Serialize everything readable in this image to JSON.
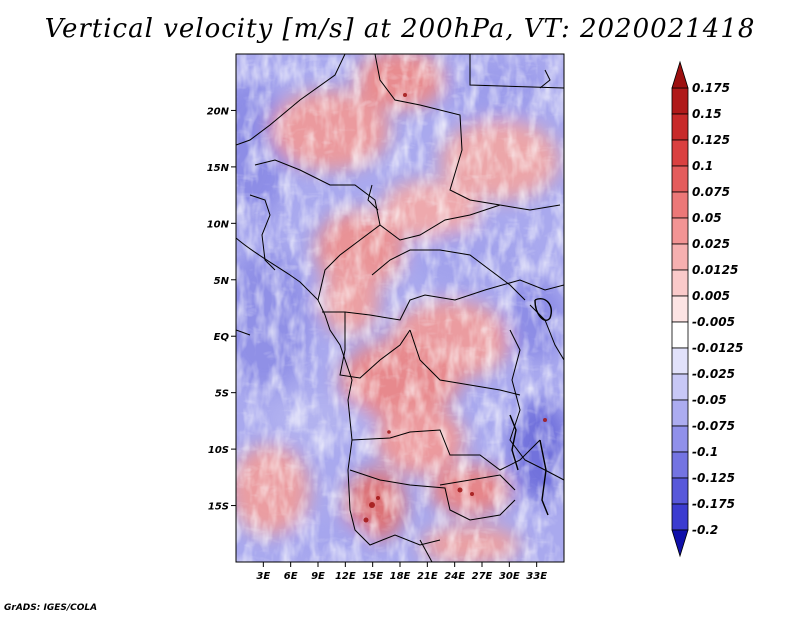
{
  "title": "Vertical velocity [m/s] at 200hPa, VT: 2020021418",
  "footer": "GrADS: IGES/COLA",
  "map": {
    "variable": "Vertical velocity",
    "units": "m/s",
    "level": "200hPa",
    "valid_time": "2020021418",
    "lon_range": [
      0,
      36
    ],
    "lat_range": [
      -20,
      25
    ],
    "lon_ticks": [
      {
        "value": 3,
        "label": "3E"
      },
      {
        "value": 6,
        "label": "6E"
      },
      {
        "value": 9,
        "label": "9E"
      },
      {
        "value": 12,
        "label": "12E"
      },
      {
        "value": 15,
        "label": "15E"
      },
      {
        "value": 18,
        "label": "18E"
      },
      {
        "value": 21,
        "label": "21E"
      },
      {
        "value": 24,
        "label": "24E"
      },
      {
        "value": 27,
        "label": "27E"
      },
      {
        "value": 30,
        "label": "30E"
      },
      {
        "value": 33,
        "label": "33E"
      }
    ],
    "lat_ticks": [
      {
        "value": 20,
        "label": "20N"
      },
      {
        "value": 15,
        "label": "15N"
      },
      {
        "value": 10,
        "label": "10N"
      },
      {
        "value": 5,
        "label": "5N"
      },
      {
        "value": 0,
        "label": "EQ"
      },
      {
        "value": -5,
        "label": "5S"
      },
      {
        "value": -10,
        "label": "10S"
      },
      {
        "value": -15,
        "label": "15S"
      }
    ]
  },
  "colorbar": {
    "levels": [
      {
        "value": 0.175,
        "label": "0.175",
        "color": "#b01a1a"
      },
      {
        "value": 0.15,
        "label": "0.15",
        "color": "#c82a2a"
      },
      {
        "value": 0.125,
        "label": "0.125",
        "color": "#da4040"
      },
      {
        "value": 0.1,
        "label": "0.1",
        "color": "#e45c5c"
      },
      {
        "value": 0.075,
        "label": "0.075",
        "color": "#ec7878"
      },
      {
        "value": 0.05,
        "label": "0.05",
        "color": "#f29494"
      },
      {
        "value": 0.025,
        "label": "0.025",
        "color": "#f6b0b0"
      },
      {
        "value": 0.0125,
        "label": "0.0125",
        "color": "#facaca"
      },
      {
        "value": 0.005,
        "label": "0.005",
        "color": "#fde4e4"
      },
      {
        "value": -0.005,
        "label": "-0.005",
        "color": "#ffffff"
      },
      {
        "value": -0.0125,
        "label": "-0.0125",
        "color": "#e2e2fb"
      },
      {
        "value": -0.025,
        "label": "-0.025",
        "color": "#c8c8f6"
      },
      {
        "value": -0.05,
        "label": "-0.05",
        "color": "#acacf0"
      },
      {
        "value": -0.075,
        "label": "-0.075",
        "color": "#9090ea"
      },
      {
        "value": -0.1,
        "label": "-0.1",
        "color": "#7474e2"
      },
      {
        "value": -0.125,
        "label": "-0.125",
        "color": "#5858da"
      },
      {
        "value": -0.175,
        "label": "-0.175",
        "color": "#3c3cd0"
      },
      {
        "value": -0.2,
        "label": "-0.2",
        "color": "#2020c0"
      }
    ],
    "top_color": "#9c1010",
    "bottom_color": "#1010aa"
  }
}
